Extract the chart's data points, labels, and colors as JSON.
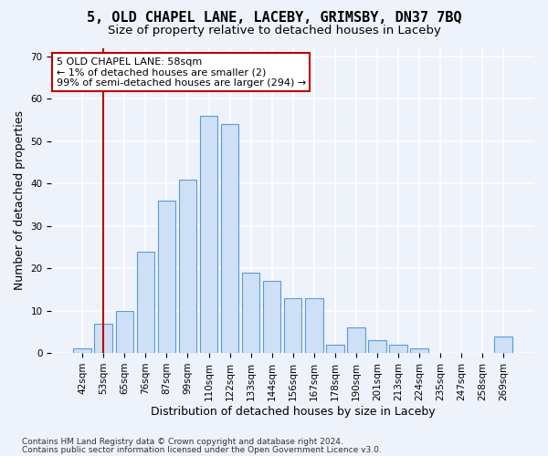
{
  "title": "5, OLD CHAPEL LANE, LACEBY, GRIMSBY, DN37 7BQ",
  "subtitle": "Size of property relative to detached houses in Laceby",
  "xlabel": "Distribution of detached houses by size in Laceby",
  "ylabel": "Number of detached properties",
  "categories": [
    "42sqm",
    "53sqm",
    "65sqm",
    "76sqm",
    "87sqm",
    "99sqm",
    "110sqm",
    "122sqm",
    "133sqm",
    "144sqm",
    "156sqm",
    "167sqm",
    "178sqm",
    "190sqm",
    "201sqm",
    "213sqm",
    "224sqm",
    "235sqm",
    "247sqm",
    "258sqm",
    "269sqm"
  ],
  "values": [
    1,
    7,
    10,
    24,
    36,
    41,
    56,
    54,
    19,
    17,
    13,
    13,
    2,
    6,
    3,
    2,
    1,
    0,
    0,
    0,
    4
  ],
  "bar_color": "#cde0f5",
  "bar_edge_color": "#5b9bd5",
  "ylim": [
    0,
    72
  ],
  "yticks": [
    0,
    10,
    20,
    30,
    40,
    50,
    60,
    70
  ],
  "vline_x_index": 1,
  "vline_color": "#c00000",
  "annotation_text": "5 OLD CHAPEL LANE: 58sqm\n← 1% of detached houses are smaller (2)\n99% of semi-detached houses are larger (294) →",
  "annotation_box_color": "#ffffff",
  "annotation_box_edge": "#c00000",
  "footer_line1": "Contains HM Land Registry data © Crown copyright and database right 2024.",
  "footer_line2": "Contains public sector information licensed under the Open Government Licence v3.0.",
  "background_color": "#eef2fa",
  "grid_color": "#ffffff",
  "title_fontsize": 11,
  "subtitle_fontsize": 9.5,
  "axis_label_fontsize": 9,
  "tick_fontsize": 7.5,
  "footer_fontsize": 6.5
}
